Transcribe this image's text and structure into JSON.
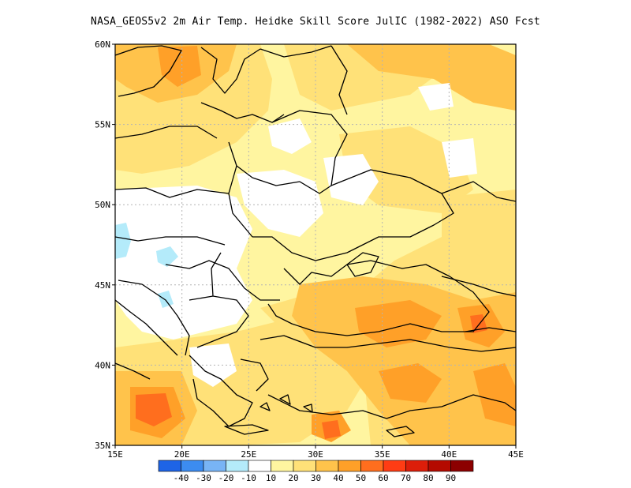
{
  "title": "NASA_GEOS5v2  2m Air Temp. Heidke Skill Score JulIC (1982-2022) ASO Fcst",
  "map": {
    "lat_ticks": [
      "60N",
      "55N",
      "50N",
      "45N",
      "40N",
      "35N"
    ],
    "lon_ticks": [
      "15E",
      "20E",
      "25E",
      "30E",
      "35E",
      "40E",
      "45E"
    ],
    "lat_range": [
      35,
      60
    ],
    "lon_range": [
      15,
      45
    ],
    "grid": "dotted"
  },
  "colorbar": {
    "labels": [
      "-40",
      "-30",
      "-20",
      "-10",
      "10",
      "20",
      "30",
      "40",
      "50",
      "60",
      "70",
      "80",
      "90"
    ],
    "colors": [
      "#1e64e6",
      "#3c8cf0",
      "#78b4f5",
      "#b4ebfa",
      "#ffffff",
      "#fff5a0",
      "#ffe178",
      "#ffc34b",
      "#ffa028",
      "#ff6e1e",
      "#ff3c14",
      "#dc1e0a",
      "#b40a00",
      "#8c0000"
    ]
  },
  "palette": {
    "white": "#ffffff",
    "c10": "#fff5a0",
    "c20": "#ffe178",
    "c30": "#ffc34b",
    "c40": "#ffa028",
    "c50": "#ff6e1e",
    "neg10": "#b4ebfa",
    "border": "#000000",
    "grid": "#b4b4b4"
  }
}
